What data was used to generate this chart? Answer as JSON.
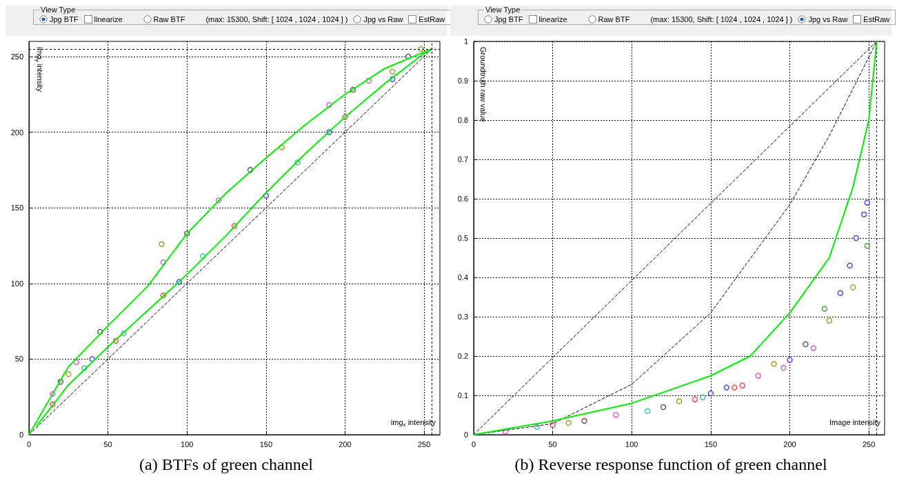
{
  "chart_data": [
    {
      "type": "scatter",
      "title": "(a) BTFs of green channel",
      "xlabel": "img$_{x}$ intensity",
      "ylabel": "img$_{y}$ intensity",
      "annotations": [
        "View Type",
        "Jpg BTF",
        "linearize",
        "Raw BTF",
        "(max: 15300, Shift: [ 1024 , 1024 , 1024 ] )",
        "Jpg vs Raw",
        "EstRaw"
      ],
      "xlim": [
        0,
        260
      ],
      "ylim": [
        0,
        260
      ],
      "xticks": [
        0,
        50,
        100,
        150,
        200,
        250
      ],
      "yticks": [
        0,
        50,
        100,
        150,
        200,
        250
      ],
      "grid": true,
      "ref_lines": [
        {
          "axis": "x",
          "value": 255,
          "color": "#000000",
          "line_style": "dashed"
        },
        {
          "axis": "y",
          "value": 255,
          "color": "#000000",
          "line_style": "dashed"
        }
      ],
      "series": [
        {
          "type": "line",
          "marker": "none",
          "color": "#000000",
          "line_style": "dashed",
          "x": [
            0,
            255
          ],
          "values": [
            0,
            255
          ]
        },
        {
          "type": "scatter",
          "marker": "circle",
          "color": "#cc33cc",
          "x": [
            15,
            30,
            85,
            120,
            190,
            215
          ],
          "values": [
            27,
            48,
            114,
            155,
            218,
            234
          ]
        },
        {
          "type": "scatter",
          "marker": "circle",
          "color": "#333333",
          "x": [
            20,
            45,
            100,
            140,
            205,
            240
          ],
          "values": [
            35,
            68,
            133,
            175,
            228,
            250
          ]
        },
        {
          "type": "scatter",
          "marker": "circle",
          "color": "#888800",
          "x": [
            25,
            84,
            160,
            230,
            248
          ],
          "values": [
            40,
            126,
            190,
            240,
            255
          ]
        },
        {
          "type": "scatter",
          "marker": "circle",
          "color": "#2222ee",
          "x": [
            40,
            95,
            150,
            190,
            230
          ],
          "values": [
            50,
            101,
            158,
            200,
            235
          ]
        },
        {
          "type": "scatter",
          "marker": "circle",
          "color": "#ee2222",
          "x": [
            15,
            55,
            85,
            130,
            200
          ],
          "values": [
            20,
            62,
            92,
            138,
            210
          ]
        },
        {
          "type": "scatter",
          "marker": "circle",
          "color": "#22aaaa",
          "x": [
            35,
            60,
            110,
            170
          ],
          "values": [
            44,
            67,
            118,
            180
          ]
        },
        {
          "type": "line",
          "marker": "none",
          "color": "#00ee00",
          "line_style": "solid",
          "x": [
            0,
            25,
            50,
            75,
            100,
            125,
            150,
            175,
            200,
            225,
            250,
            255
          ],
          "values": [
            0,
            45,
            72,
            98,
            133,
            160,
            183,
            205,
            225,
            242,
            253,
            255
          ]
        },
        {
          "type": "line",
          "marker": "none",
          "color": "#00ee00",
          "line_style": "solid",
          "x": [
            5,
            25,
            50,
            75,
            100,
            125,
            150,
            175,
            200,
            225,
            250,
            255
          ],
          "values": [
            6,
            33,
            58,
            82,
            106,
            132,
            160,
            186,
            210,
            232,
            252,
            255
          ]
        }
      ]
    },
    {
      "type": "scatter",
      "title": "(b) Reverse response function of green channel",
      "xlabel": "Image intensity",
      "ylabel": "Groundtruth raw value",
      "annotations": [
        "View Type",
        "Jpg BTF",
        "linearize",
        "Raw BTF",
        "(max: 15300, Shift: [ 1024 , 1024 , 1024 ] )",
        "Jpg vs Raw",
        "EstRaw"
      ],
      "xlim": [
        0,
        260
      ],
      "ylim": [
        0,
        1
      ],
      "xticks": [
        0,
        50,
        100,
        150,
        200,
        250
      ],
      "yticks": [
        0,
        0.1,
        0.2,
        0.3,
        0.4,
        0.5,
        0.6,
        0.7,
        0.8,
        0.9,
        1
      ],
      "grid": true,
      "ref_lines": [
        {
          "axis": "x",
          "value": 255,
          "color": "#000000",
          "line_style": "dashed"
        }
      ],
      "series": [
        {
          "type": "line",
          "marker": "none",
          "color": "#000000",
          "line_style": "dashed",
          "x": [
            0,
            255
          ],
          "values": [
            0,
            1
          ]
        },
        {
          "type": "line",
          "marker": "none",
          "color": "#000000",
          "line_style": "dashed",
          "x": [
            0,
            50,
            100,
            150,
            200,
            225,
            255
          ],
          "values": [
            0,
            0.028,
            0.128,
            0.31,
            0.585,
            0.76,
            1
          ]
        },
        {
          "type": "scatter",
          "marker": "circle",
          "color": "#2222ee",
          "x": [
            150,
            160,
            200,
            232,
            238,
            242,
            247,
            249
          ],
          "values": [
            0.105,
            0.12,
            0.19,
            0.36,
            0.43,
            0.5,
            0.56,
            0.59
          ]
        },
        {
          "type": "scatter",
          "marker": "circle",
          "color": "#cc33cc",
          "x": [
            20,
            90,
            180,
            196,
            215
          ],
          "values": [
            0.008,
            0.05,
            0.15,
            0.17,
            0.22
          ]
        },
        {
          "type": "scatter",
          "marker": "circle",
          "color": "#ee2222",
          "x": [
            50,
            140,
            165,
            170
          ],
          "values": [
            0.025,
            0.09,
            0.12,
            0.125
          ]
        },
        {
          "type": "scatter",
          "marker": "circle",
          "color": "#888800",
          "x": [
            60,
            130,
            190,
            225,
            240
          ],
          "values": [
            0.03,
            0.085,
            0.18,
            0.29,
            0.375
          ]
        },
        {
          "type": "scatter",
          "marker": "circle",
          "color": "#22aaaa",
          "x": [
            40,
            110,
            145
          ],
          "values": [
            0.02,
            0.06,
            0.095
          ]
        },
        {
          "type": "scatter",
          "marker": "circle",
          "color": "#333333",
          "x": [
            70,
            120,
            210
          ],
          "values": [
            0.035,
            0.07,
            0.23
          ]
        },
        {
          "type": "scatter",
          "marker": "circle",
          "color": "#228822",
          "x": [
            222,
            249
          ],
          "values": [
            0.32,
            0.48
          ]
        },
        {
          "type": "line",
          "marker": "none",
          "color": "#00ee00",
          "line_style": "solid",
          "x": [
            0,
            50,
            100,
            150,
            175,
            200,
            225,
            240,
            250,
            255
          ],
          "values": [
            0,
            0.035,
            0.08,
            0.15,
            0.2,
            0.31,
            0.45,
            0.63,
            0.8,
            1
          ]
        }
      ]
    }
  ]
}
